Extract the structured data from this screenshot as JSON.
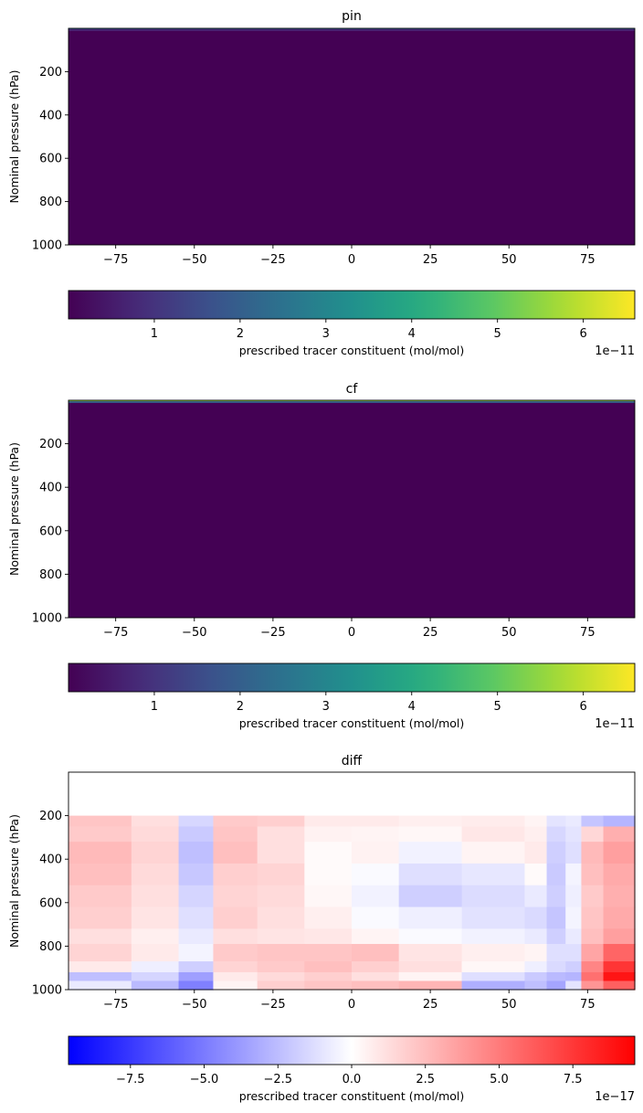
{
  "chart_data": [
    {
      "type": "heatmap",
      "title": "pin",
      "xlabel": "",
      "ylabel": "Nominal pressure (hPa)",
      "xlim": [
        -90,
        90
      ],
      "ylim": [
        1000,
        0
      ],
      "x_ticks": [
        "−75",
        "−50",
        "−25",
        "0",
        "25",
        "50",
        "75"
      ],
      "x_tick_values": [
        -75,
        -50,
        -25,
        0,
        25,
        50,
        75
      ],
      "y_ticks": [
        "200",
        "400",
        "600",
        "800",
        "1000"
      ],
      "y_tick_values": [
        200,
        400,
        600,
        800,
        1000
      ],
      "colormap": "viridis",
      "colorbar": {
        "label": "prescribed tracer constituent (mol/mol)",
        "ticks": [
          "1",
          "2",
          "3",
          "4",
          "5",
          "6"
        ],
        "tick_values": [
          1,
          2,
          3,
          4,
          5,
          6
        ],
        "range": [
          0,
          6.6
        ],
        "offset_text": "1e−11"
      },
      "description_values": {
        "dominant_value": 0.0,
        "top_layers": [
          {
            "p_top": 0,
            "p_bottom": 5,
            "value": 1.8
          },
          {
            "p_top": 5,
            "p_bottom": 12,
            "value": 0.7
          }
        ]
      }
    },
    {
      "type": "heatmap",
      "title": "cf",
      "xlabel": "",
      "ylabel": "Nominal pressure (hPa)",
      "xlim": [
        -90,
        90
      ],
      "ylim": [
        1000,
        0
      ],
      "x_ticks": [
        "−75",
        "−50",
        "−25",
        "0",
        "25",
        "50",
        "75"
      ],
      "x_tick_values": [
        -75,
        -50,
        -25,
        0,
        25,
        50,
        75
      ],
      "y_ticks": [
        "200",
        "400",
        "600",
        "800",
        "1000"
      ],
      "y_tick_values": [
        200,
        400,
        600,
        800,
        1000
      ],
      "colormap": "viridis",
      "colorbar": {
        "label": "prescribed tracer constituent (mol/mol)",
        "ticks": [
          "1",
          "2",
          "3",
          "4",
          "5",
          "6"
        ],
        "tick_values": [
          1,
          2,
          3,
          4,
          5,
          6
        ],
        "range": [
          0,
          6.6
        ],
        "offset_text": "1e−11"
      },
      "description_values": {
        "dominant_value": 0.0,
        "top_layers": [
          {
            "p_top": 0,
            "p_bottom": 5,
            "value": 5.6
          },
          {
            "p_top": 5,
            "p_bottom": 12,
            "value": 2.2
          }
        ]
      }
    },
    {
      "type": "heatmap",
      "title": "diff",
      "xlabel": "",
      "ylabel": "Nominal pressure (hPa)",
      "xlim": [
        -90,
        90
      ],
      "ylim": [
        1000,
        0
      ],
      "x_ticks": [
        "−75",
        "−50",
        "−25",
        "0",
        "25",
        "50",
        "75"
      ],
      "x_tick_values": [
        -75,
        -50,
        -25,
        0,
        25,
        50,
        75
      ],
      "y_ticks": [
        "200",
        "400",
        "600",
        "800",
        "1000"
      ],
      "y_tick_values": [
        200,
        400,
        600,
        800,
        1000
      ],
      "colormap": "bwr",
      "colorbar": {
        "label": "prescribed tracer constituent (mol/mol)",
        "ticks": [
          "−7.5",
          "−5.0",
          "−2.5",
          "0.0",
          "2.5",
          "5.0",
          "7.5"
        ],
        "tick_values": [
          -7.5,
          -5.0,
          -2.5,
          0.0,
          2.5,
          5.0,
          7.5
        ],
        "range": [
          -9.6,
          9.6
        ],
        "offset_text": "1e−17"
      },
      "lat_bins": [
        -90,
        -70,
        -55,
        -44,
        -30,
        -15,
        0,
        15,
        35,
        55,
        62,
        68,
        73,
        80,
        90
      ],
      "p_bins": [
        0,
        200,
        250,
        320,
        420,
        520,
        620,
        720,
        790,
        870,
        920,
        960,
        1000
      ],
      "values": [
        [
          0.0,
          0.0,
          0.0,
          0.0,
          0.0,
          0.0,
          0.0,
          0.0,
          0.0,
          0.0,
          0.0,
          0.0,
          0.0,
          0.0
        ],
        [
          2.2,
          1.2,
          -1.5,
          2.0,
          1.8,
          0.8,
          0.8,
          0.6,
          0.7,
          0.4,
          -1.0,
          -0.8,
          -2.2,
          -2.8
        ],
        [
          2.0,
          1.4,
          -2.0,
          2.2,
          1.2,
          0.5,
          0.4,
          0.3,
          0.9,
          0.6,
          -1.5,
          -1.0,
          1.5,
          3.0
        ],
        [
          2.6,
          1.6,
          -2.4,
          2.4,
          1.2,
          0.2,
          0.5,
          -0.5,
          0.4,
          0.8,
          -1.8,
          -1.2,
          2.6,
          3.6
        ],
        [
          2.4,
          1.4,
          -2.1,
          1.8,
          1.6,
          0.2,
          -0.2,
          -1.2,
          -0.9,
          0.2,
          -2.0,
          -0.4,
          2.4,
          3.2
        ],
        [
          2.0,
          1.2,
          -1.6,
          1.6,
          1.4,
          0.3,
          -0.5,
          -1.8,
          -1.3,
          -0.8,
          -1.8,
          -0.6,
          2.0,
          3.0
        ],
        [
          1.8,
          1.0,
          -1.2,
          1.8,
          1.2,
          0.6,
          -0.2,
          -0.6,
          -1.1,
          -1.4,
          -2.2,
          -0.4,
          2.2,
          3.2
        ],
        [
          1.2,
          0.6,
          -0.8,
          1.2,
          1.0,
          0.9,
          0.4,
          -0.2,
          -0.5,
          -0.8,
          -1.8,
          -0.8,
          2.4,
          3.6
        ],
        [
          1.6,
          0.8,
          -0.4,
          2.0,
          2.2,
          2.2,
          2.4,
          1.0,
          0.6,
          0.4,
          -1.2,
          -1.2,
          3.4,
          5.8
        ],
        [
          0.8,
          -0.6,
          -1.8,
          1.6,
          2.0,
          2.4,
          1.8,
          1.2,
          0.3,
          -0.6,
          -1.4,
          -1.8,
          4.6,
          7.6
        ],
        [
          -2.4,
          -1.6,
          -3.6,
          0.8,
          1.4,
          1.8,
          1.2,
          0.4,
          -1.2,
          -2.0,
          -2.6,
          -2.8,
          5.4,
          8.8
        ],
        [
          -0.8,
          -2.6,
          -4.8,
          0.4,
          1.8,
          2.2,
          2.4,
          2.8,
          -3.0,
          -2.4,
          -3.4,
          -1.0,
          4.0,
          6.0
        ]
      ]
    }
  ]
}
